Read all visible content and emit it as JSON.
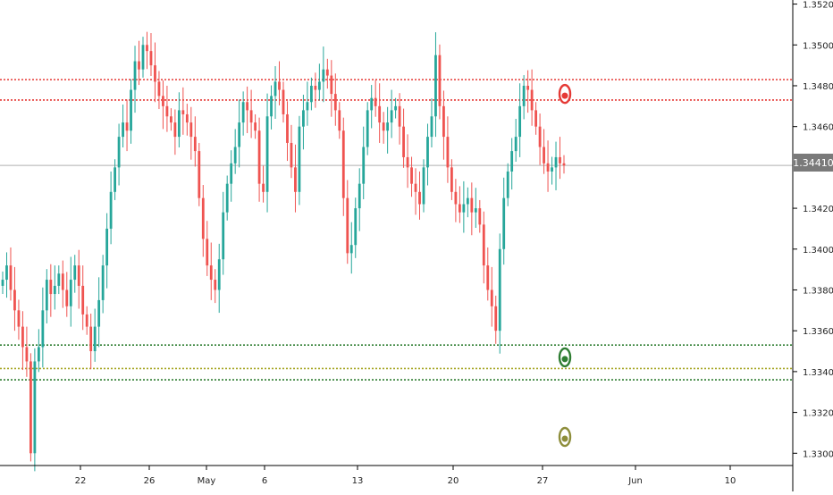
{
  "chart_data": {
    "type": "candlestick",
    "instrument_last_price": "1.34410",
    "y_axis": {
      "ticks": [
        "1.35200",
        "1.35000",
        "1.34800",
        "1.34600",
        "1.34200",
        "1.34000",
        "1.33800",
        "1.33600",
        "1.33400",
        "1.33200",
        "1.33000"
      ],
      "range": [
        1.3294,
        1.3522
      ]
    },
    "x_axis": {
      "ticks": [
        "22",
        "26",
        "May",
        "6",
        "13",
        "20",
        "27",
        "Jun",
        "10"
      ]
    },
    "grid": false,
    "horizontal_levels": [
      {
        "name": "resistance-upper",
        "value": 1.3483,
        "color": "#e53935",
        "style": "dotted"
      },
      {
        "name": "resistance-lower",
        "value": 1.3473,
        "color": "#e53935",
        "style": "dotted"
      },
      {
        "name": "support-upper",
        "value": 1.3353,
        "color": "#2e7d32",
        "style": "dotted"
      },
      {
        "name": "support-mid",
        "value": 1.33415,
        "color": "#a5a520",
        "style": "dotted"
      },
      {
        "name": "support-lower",
        "value": 1.3336,
        "color": "#2e7d32",
        "style": "dotted"
      },
      {
        "name": "last-price",
        "value": 1.3441,
        "color": "#b0b0b0",
        "style": "solid"
      }
    ],
    "markers": [
      {
        "name": "red-target-marker",
        "value": 1.3476,
        "color": "#e53935"
      },
      {
        "name": "green-target-marker",
        "value": 1.3347,
        "color": "#2e7d32"
      },
      {
        "name": "olive-target-marker",
        "value": 1.3308,
        "color": "#8d8d3a"
      }
    ],
    "candles_close": [
      1.3385,
      1.3392,
      1.338,
      1.337,
      1.3362,
      1.3352,
      1.3345,
      1.33,
      1.3345,
      1.3352,
      1.337,
      1.3385,
      1.3378,
      1.3382,
      1.3388,
      1.338,
      1.3372,
      1.3385,
      1.3392,
      1.3382,
      1.3368,
      1.3362,
      1.335,
      1.3362,
      1.3375,
      1.3392,
      1.341,
      1.3428,
      1.344,
      1.3455,
      1.3462,
      1.3458,
      1.3478,
      1.3492,
      1.3488,
      1.35,
      1.3497,
      1.349,
      1.3482,
      1.3475,
      1.347,
      1.3465,
      1.3462,
      1.3455,
      1.3468,
      1.3466,
      1.3462,
      1.3455,
      1.3448,
      1.3425,
      1.3405,
      1.3392,
      1.3385,
      1.338,
      1.3395,
      1.3418,
      1.3432,
      1.3442,
      1.345,
      1.3462,
      1.3472,
      1.3468,
      1.3462,
      1.3458,
      1.3432,
      1.3428,
      1.3465,
      1.3475,
      1.3482,
      1.3478,
      1.3466,
      1.3452,
      1.344,
      1.3428,
      1.346,
      1.3468,
      1.3472,
      1.348,
      1.3478,
      1.3482,
      1.3488,
      1.3485,
      1.3476,
      1.3468,
      1.3458,
      1.3425,
      1.3398,
      1.3402,
      1.342,
      1.3432,
      1.345,
      1.3468,
      1.3474,
      1.347,
      1.3462,
      1.3458,
      1.3462,
      1.3468,
      1.347,
      1.346,
      1.3445,
      1.344,
      1.3432,
      1.3428,
      1.3422,
      1.344,
      1.3455,
      1.3465,
      1.3495,
      1.347,
      1.3455,
      1.344,
      1.3428,
      1.3422,
      1.3418,
      1.3422,
      1.3425,
      1.3418,
      1.342,
      1.3412,
      1.3392,
      1.338,
      1.3372,
      1.336,
      1.34,
      1.3425,
      1.3438,
      1.3448,
      1.3455,
      1.347,
      1.348,
      1.3478,
      1.3468,
      1.346,
      1.345,
      1.3442,
      1.3438,
      1.344,
      1.3445,
      1.3442,
      1.3441
    ]
  },
  "page": {
    "last_price_label": "1.34410"
  }
}
